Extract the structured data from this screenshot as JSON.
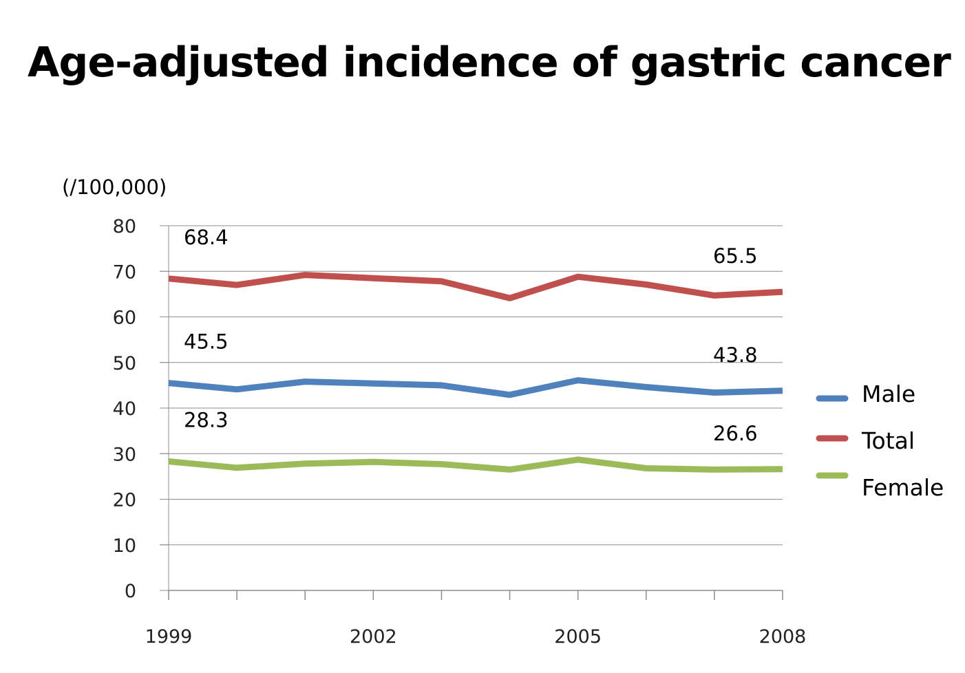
{
  "title": "Age-adjusted incidence of gastric cancer",
  "chart_data": {
    "type": "line",
    "unit_label": "(/100,000)",
    "x": [
      1999,
      2000,
      2001,
      2002,
      2003,
      2004,
      2005,
      2006,
      2007,
      2008
    ],
    "x_tick_labels": [
      "1999",
      "2002",
      "2005",
      "2008"
    ],
    "y_ticks": [
      0,
      10,
      20,
      30,
      40,
      50,
      60,
      70,
      80
    ],
    "ylim": [
      0,
      80
    ],
    "grid": "horizontal",
    "legend_position": "right",
    "series": [
      {
        "name": "Total",
        "color": "#c0504d",
        "values": [
          68.4,
          67.0,
          69.2,
          68.5,
          67.8,
          64.1,
          68.8,
          67.1,
          64.7,
          65.5
        ],
        "labels": [
          {
            "index": 0,
            "text": "68.4"
          },
          {
            "index": 9,
            "text": "65.5"
          }
        ]
      },
      {
        "name": "Male",
        "color": "#4f81bd",
        "values": [
          45.5,
          44.1,
          45.8,
          45.4,
          45.0,
          42.9,
          46.1,
          44.6,
          43.4,
          43.8
        ],
        "labels": [
          {
            "index": 0,
            "text": "45.5"
          },
          {
            "index": 9,
            "text": "43.8"
          }
        ]
      },
      {
        "name": "Female",
        "color": "#9bbb59",
        "values": [
          28.3,
          26.9,
          27.8,
          28.2,
          27.7,
          26.5,
          28.7,
          26.8,
          26.5,
          26.6
        ],
        "labels": [
          {
            "index": 0,
            "text": "28.3"
          },
          {
            "index": 9,
            "text": "26.6"
          }
        ]
      }
    ],
    "legend_order": [
      "Male",
      "Total",
      "Female"
    ]
  }
}
